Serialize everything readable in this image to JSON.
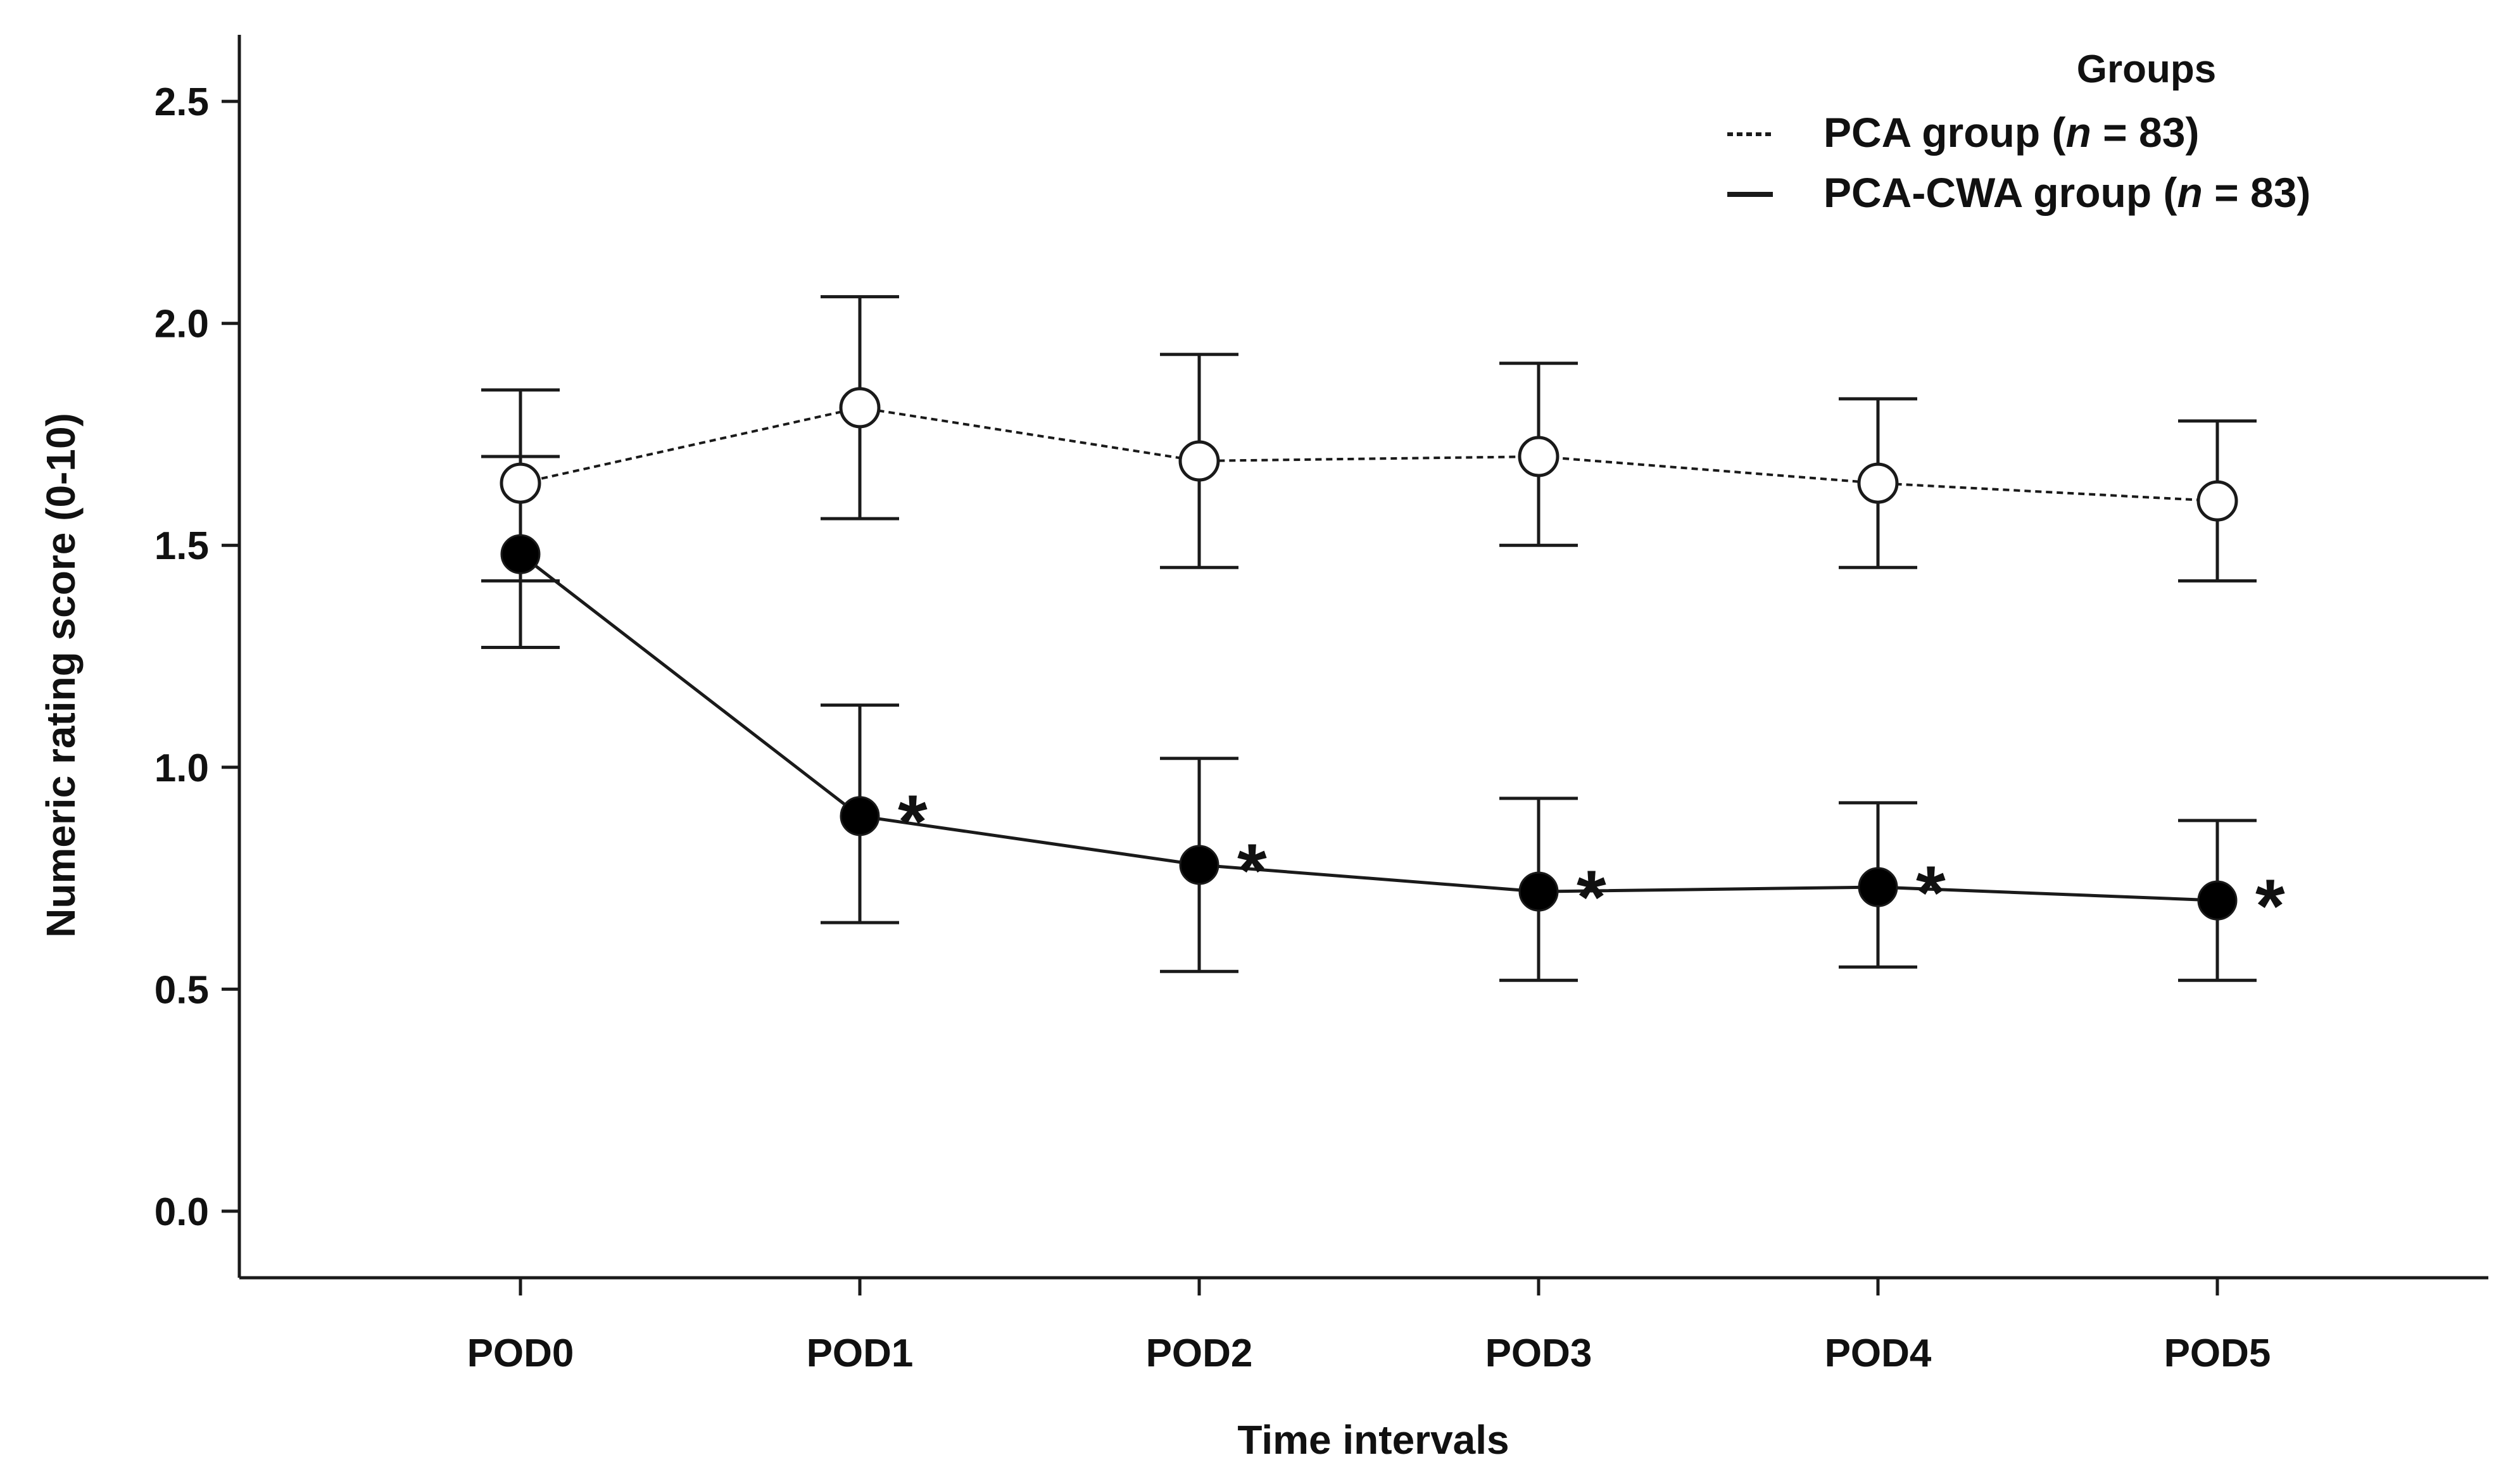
{
  "chart_data": {
    "type": "line",
    "title": "",
    "xlabel": "Time intervals",
    "ylabel": "Numeric rating score (0-10)",
    "categories": [
      "POD0",
      "POD1",
      "POD2",
      "POD3",
      "POD4",
      "POD5"
    ],
    "ylim": [
      -0.15,
      2.65
    ],
    "yticks": [
      0.0,
      0.5,
      1.0,
      1.5,
      2.0,
      2.5
    ],
    "ytick_labels": [
      "0.0",
      "0.5",
      "1.0",
      "1.5",
      "2.0",
      "2.5"
    ],
    "grid": false,
    "legend": {
      "title": "Groups",
      "placement": "top-right"
    },
    "series": [
      {
        "name": "PCA group",
        "n_label": "(n = 83)",
        "n_prefix": "(",
        "n_italic": "n",
        "n_suffix": " = 83)",
        "line_style": "dotted",
        "marker": "open-circle",
        "values": [
          1.64,
          1.81,
          1.69,
          1.7,
          1.64,
          1.6
        ],
        "error_upper": [
          1.85,
          2.06,
          1.93,
          1.91,
          1.83,
          1.78
        ],
        "error_lower": [
          1.42,
          1.56,
          1.45,
          1.5,
          1.45,
          1.42
        ]
      },
      {
        "name": "PCA-CWA group",
        "n_label": "(n = 83)",
        "n_prefix": "(",
        "n_italic": "n",
        "n_suffix": " = 83)",
        "line_style": "solid",
        "marker": "filled-circle",
        "values": [
          1.48,
          0.89,
          0.78,
          0.72,
          0.73,
          0.7
        ],
        "error_upper": [
          1.7,
          1.14,
          1.02,
          0.93,
          0.92,
          0.88
        ],
        "error_lower": [
          1.27,
          0.65,
          0.54,
          0.52,
          0.55,
          0.52
        ]
      }
    ],
    "annotations": [
      {
        "category": "POD1",
        "series": "PCA-CWA group",
        "text": "*"
      },
      {
        "category": "POD2",
        "series": "PCA-CWA group",
        "text": "*"
      },
      {
        "category": "POD3",
        "series": "PCA-CWA group",
        "text": "*"
      },
      {
        "category": "POD4",
        "series": "PCA-CWA group",
        "text": "*"
      },
      {
        "category": "POD5",
        "series": "PCA-CWA group",
        "text": "*"
      }
    ]
  }
}
